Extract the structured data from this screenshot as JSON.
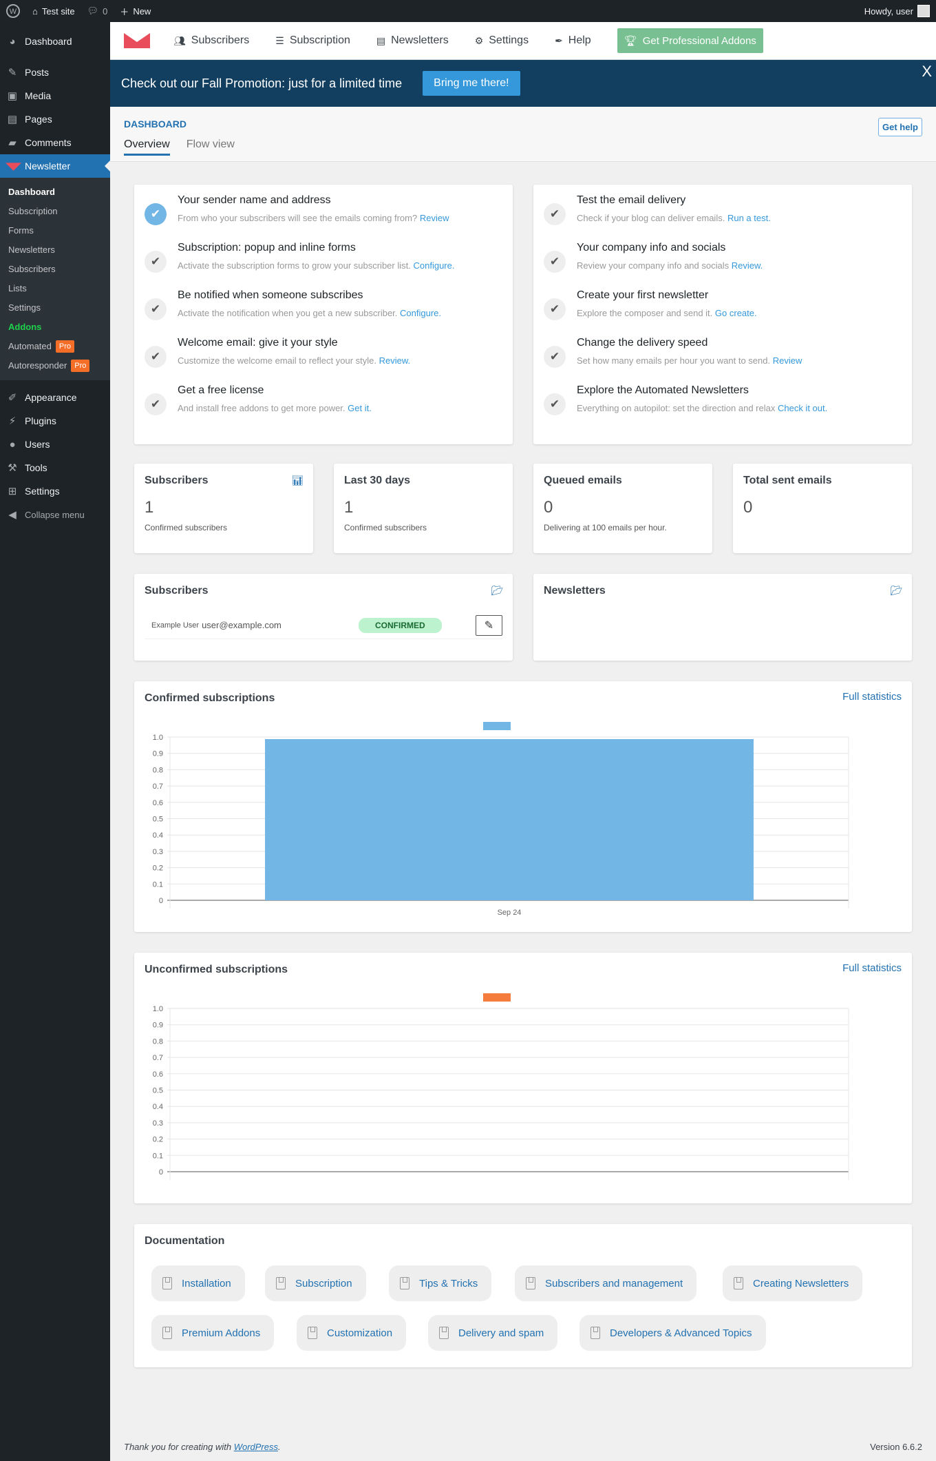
{
  "adminbar": {
    "site": "Test site",
    "comments": "0",
    "new": "New",
    "howdy": "Howdy, user"
  },
  "sidebar": {
    "items_top": [
      {
        "label": "Dashboard",
        "icon": "dashboard-icon"
      },
      {
        "label": "Posts",
        "icon": "pin-icon"
      },
      {
        "label": "Media",
        "icon": "media-icon"
      },
      {
        "label": "Pages",
        "icon": "pages-icon"
      },
      {
        "label": "Comments",
        "icon": "comment-icon"
      }
    ],
    "newsletter": "Newsletter",
    "submenu": [
      "Dashboard",
      "Subscription",
      "Forms",
      "Newsletters",
      "Subscribers",
      "Lists",
      "Settings",
      "Addons",
      "Automated",
      "Autoresponder"
    ],
    "pro_badge": "Pro",
    "items_bottom": [
      "Appearance",
      "Plugins",
      "Users",
      "Tools",
      "Settings"
    ],
    "collapse": "Collapse menu"
  },
  "nav": {
    "items": [
      "Subscribers",
      "Subscription",
      "Newsletters",
      "Settings",
      "Help"
    ],
    "pro": "Get Professional Addons"
  },
  "promo": {
    "text": "Check out our Fall Promotion: just for a limited time",
    "button": "Bring me there!",
    "close": "X"
  },
  "header": {
    "title": "DASHBOARD",
    "tabs": [
      "Overview",
      "Flow view"
    ],
    "help": "Get help"
  },
  "checklist_left": [
    {
      "title": "Your sender name and address",
      "desc": "From who your subscribers will see the emails coming from?",
      "link": "Review",
      "tail": "",
      "done": true
    },
    {
      "title": "Subscription: popup and inline forms",
      "desc": "Activate the subscription forms to grow your subscriber list.",
      "link": "Configure",
      "tail": ".",
      "done": false
    },
    {
      "title": "Be notified when someone subscribes",
      "desc": "Activate the notification when you get a new subscriber.",
      "link": "Configure",
      "tail": ".",
      "done": false
    },
    {
      "title": "Welcome email: give it your style",
      "desc": "Customize the welcome email to reflect your style.",
      "link": "Review",
      "tail": ".",
      "done": false
    },
    {
      "title": "Get a free license",
      "desc": "And install free addons to get more power.",
      "link": "Get it",
      "tail": ".",
      "done": false
    }
  ],
  "checklist_right": [
    {
      "title": "Test the email delivery",
      "desc": "Check if your blog can deliver emails.",
      "link": "Run a test",
      "tail": ".",
      "done": false
    },
    {
      "title": "Your company info and socials",
      "desc": "Review your company info and socials",
      "link": "Review",
      "tail": ".",
      "done": false
    },
    {
      "title": "Create your first newsletter",
      "desc": "Explore the composer and send it.",
      "link": "Go create",
      "tail": ".",
      "done": false
    },
    {
      "title": "Change the delivery speed",
      "desc": "Set how many emails per hour you want to send.",
      "link": "Review",
      "tail": "",
      "done": false
    },
    {
      "title": "Explore the Automated Newsletters",
      "desc": "Everything on autopilot: set the direction and relax",
      "link": "Check it out",
      "tail": ".",
      "done": false
    }
  ],
  "stats": [
    {
      "title": "Subscribers",
      "value": "1",
      "sub": "Confirmed subscribers"
    },
    {
      "title": "Last 30 days",
      "value": "1",
      "sub": "Confirmed subscribers"
    },
    {
      "title": "Queued emails",
      "value": "0",
      "sub": "Delivering at 100 emails per hour."
    },
    {
      "title": "Total sent emails",
      "value": "0",
      "sub": ""
    }
  ],
  "subscribers_box": {
    "title": "Subscribers",
    "name": "Example User",
    "email": "user@example.com",
    "status": "CONFIRMED"
  },
  "newsletters_box": {
    "title": "Newsletters"
  },
  "full_stats": "Full statistics",
  "chart_data": [
    {
      "type": "bar",
      "title": "Confirmed subscriptions",
      "categories": [
        "Sep 24"
      ],
      "values": [
        1
      ],
      "ylim": [
        0,
        1
      ],
      "yticks": [
        "0",
        "0.1",
        "0.2",
        "0.3",
        "0.4",
        "0.5",
        "0.6",
        "0.7",
        "0.8",
        "0.9",
        "1.0"
      ],
      "color": "#72b6e6",
      "grid": true,
      "legend": "top"
    },
    {
      "type": "bar",
      "title": "Unconfirmed subscriptions",
      "categories": [],
      "values": [],
      "ylim": [
        0,
        1
      ],
      "yticks": [
        "0",
        "0.1",
        "0.2",
        "0.3",
        "0.4",
        "0.5",
        "0.6",
        "0.7",
        "0.8",
        "0.9",
        "1.0"
      ],
      "color": "#f47c3c",
      "grid": true,
      "legend": "top"
    }
  ],
  "documentation": {
    "title": "Documentation",
    "links": [
      "Installation",
      "Subscription",
      "Tips & Tricks",
      "Subscribers and management",
      "Creating Newsletters",
      "Premium Addons",
      "Customization",
      "Delivery and spam",
      "Developers & Advanced Topics"
    ]
  },
  "footer": {
    "text": "Thank you for creating with ",
    "link": "WordPress",
    "end": ".",
    "version": "Version 6.6.2"
  }
}
